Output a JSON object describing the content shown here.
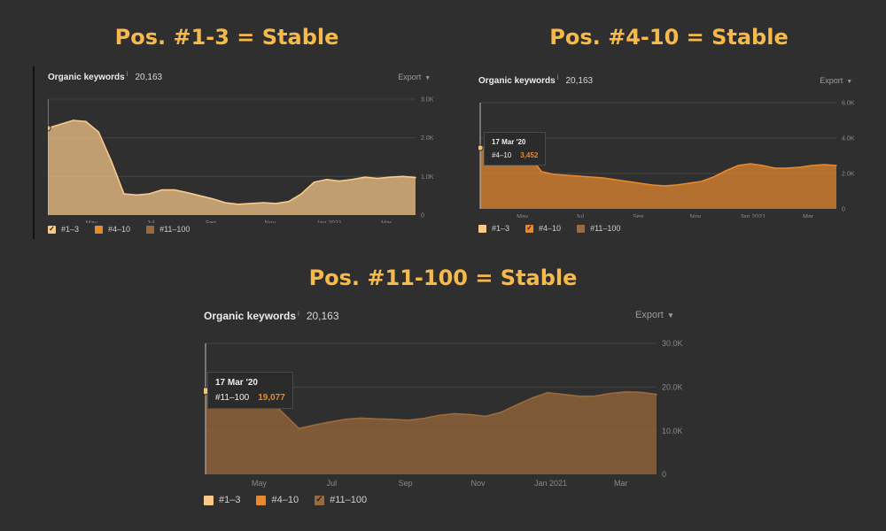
{
  "headings": [
    "Pos. #1-3 = Stable",
    "Pos. #4-10 = Stable",
    "Pos. #11-100 = Stable"
  ],
  "panels": [
    {
      "title": "Organic keywords",
      "info": "i",
      "count": "20,163",
      "export_label": "Export",
      "legend": [
        "#1–3",
        "#4–10",
        "#11–100"
      ],
      "checked_index": 0
    },
    {
      "title": "Organic keywords",
      "info": "i",
      "count": "20,163",
      "export_label": "Export",
      "legend": [
        "#1–3",
        "#4–10",
        "#11–100"
      ],
      "checked_index": 1,
      "tooltip": {
        "date": "17 Mar '20",
        "series": "#4–10",
        "value": "3,452"
      }
    },
    {
      "title": "Organic keywords",
      "info": "i",
      "count": "20,163",
      "export_label": "Export",
      "legend": [
        "#1–3",
        "#4–10",
        "#11–100"
      ],
      "checked_index": 2,
      "tooltip": {
        "date": "17 Mar '20",
        "series": "#11–100",
        "value": "19,077"
      }
    }
  ],
  "colors": {
    "heading": "#f6b94a",
    "pos_1_3": "#f9c98a",
    "pos_4_10": "#e8892e",
    "pos_11_100": "#9b6a3a",
    "grid": "#464646"
  },
  "chart_data": [
    {
      "type": "area",
      "title": "",
      "series": [
        {
          "name": "#1–3",
          "values": [
            2.25,
            2.35,
            2.45,
            2.42,
            2.15,
            1.4,
            0.55,
            0.52,
            0.55,
            0.65,
            0.65,
            0.58,
            0.5,
            0.42,
            0.32,
            0.28,
            0.3,
            0.32,
            0.3,
            0.35,
            0.55,
            0.85,
            0.92,
            0.88,
            0.92,
            0.98,
            0.95,
            0.98,
            1.0,
            0.97
          ]
        }
      ],
      "x_start": "2020-03-17",
      "x_end": "2021-03-31",
      "x_ticks": [
        "May",
        "Jul",
        "Sep",
        "Nov",
        "Jan 2021",
        "Mar"
      ],
      "y_ticks": [
        "3.0K",
        "2.0K",
        "1.0K",
        "0"
      ],
      "ylim": [
        0,
        3
      ],
      "y_unit": "K",
      "grid": true,
      "legend_position": "bottom"
    },
    {
      "type": "area",
      "title": "",
      "series": [
        {
          "name": "#4–10",
          "values": [
            3.45,
            3.6,
            3.7,
            3.55,
            3.0,
            2.1,
            1.95,
            1.9,
            1.85,
            1.8,
            1.75,
            1.65,
            1.55,
            1.45,
            1.35,
            1.3,
            1.35,
            1.45,
            1.55,
            1.8,
            2.15,
            2.45,
            2.55,
            2.45,
            2.3,
            2.3,
            2.35,
            2.45,
            2.5,
            2.45
          ]
        }
      ],
      "x_start": "2020-03-17",
      "x_end": "2021-03-31",
      "x_ticks": [
        "May",
        "Jul",
        "Sep",
        "Nov",
        "Jan 2021",
        "Mar"
      ],
      "y_ticks": [
        "6.0K",
        "4.0K",
        "2.0K",
        "0"
      ],
      "ylim": [
        0,
        6
      ],
      "y_unit": "K",
      "grid": true,
      "legend_position": "bottom"
    },
    {
      "type": "area",
      "title": "",
      "series": [
        {
          "name": "#11–100",
          "values": [
            19.1,
            19.3,
            19.2,
            18.9,
            17.5,
            14.0,
            10.5,
            11.3,
            12.0,
            12.6,
            12.9,
            12.7,
            12.6,
            12.4,
            12.8,
            13.5,
            13.9,
            13.7,
            13.3,
            14.2,
            15.9,
            17.5,
            18.7,
            18.3,
            17.9,
            17.9,
            18.5,
            18.9,
            18.8,
            18.3
          ]
        }
      ],
      "x_start": "2020-03-17",
      "x_end": "2021-03-31",
      "x_ticks": [
        "May",
        "Jul",
        "Sep",
        "Nov",
        "Jan 2021",
        "Mar"
      ],
      "y_ticks": [
        "30.0K",
        "20.0K",
        "10.0K",
        "0"
      ],
      "ylim": [
        0,
        30
      ],
      "y_unit": "K",
      "grid": true,
      "legend_position": "bottom"
    }
  ]
}
